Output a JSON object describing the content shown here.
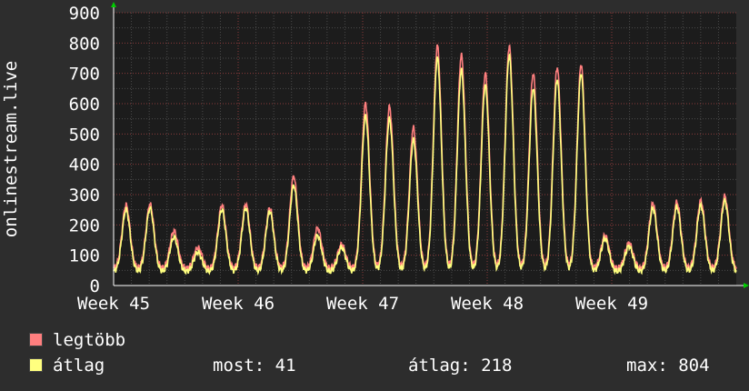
{
  "chart_data": {
    "type": "line",
    "ylabel": "onlinestream.live",
    "ylim": [
      0,
      900
    ],
    "yticks": [
      0,
      100,
      200,
      300,
      400,
      500,
      600,
      700,
      800,
      900
    ],
    "xticks": [
      "Week 45",
      "Week 46",
      "Week 47",
      "Week 48",
      "Week 49"
    ],
    "x_range_days": [
      0,
      35
    ],
    "grid": true,
    "legend_position": "bottom-left",
    "daily_peaks": {
      "max": [
        265,
        268,
        180,
        125,
        265,
        268,
        255,
        360,
        190,
        135,
        600,
        590,
        520,
        790,
        760,
        700,
        790,
        700,
        720,
        730,
        165,
        140,
        270,
        275,
        280,
        295
      ],
      "avg": [
        250,
        255,
        160,
        110,
        250,
        255,
        245,
        330,
        165,
        125,
        560,
        550,
        480,
        750,
        710,
        660,
        760,
        650,
        680,
        700,
        155,
        130,
        255,
        260,
        265,
        280
      ]
    },
    "series": [
      {
        "name": "legtöbb",
        "color": "#ff7f7f"
      },
      {
        "name": "átlag",
        "color": "#ffff7f"
      }
    ]
  },
  "legend": {
    "items": [
      {
        "label": "legtöbb",
        "color": "#ff7f7f"
      },
      {
        "label": "átlag",
        "color": "#ffff7f"
      }
    ],
    "stats": {
      "current": "most: 41",
      "average": "átlag: 218",
      "max": "max: 804"
    }
  },
  "colors": {
    "background": "#2d2d2d",
    "plot_background": "#1c1c1c",
    "grid_major": "#8a3a3a",
    "grid_minor": "#4a4a4a",
    "axis": "#ffffff",
    "arrow": "#00cc00"
  }
}
